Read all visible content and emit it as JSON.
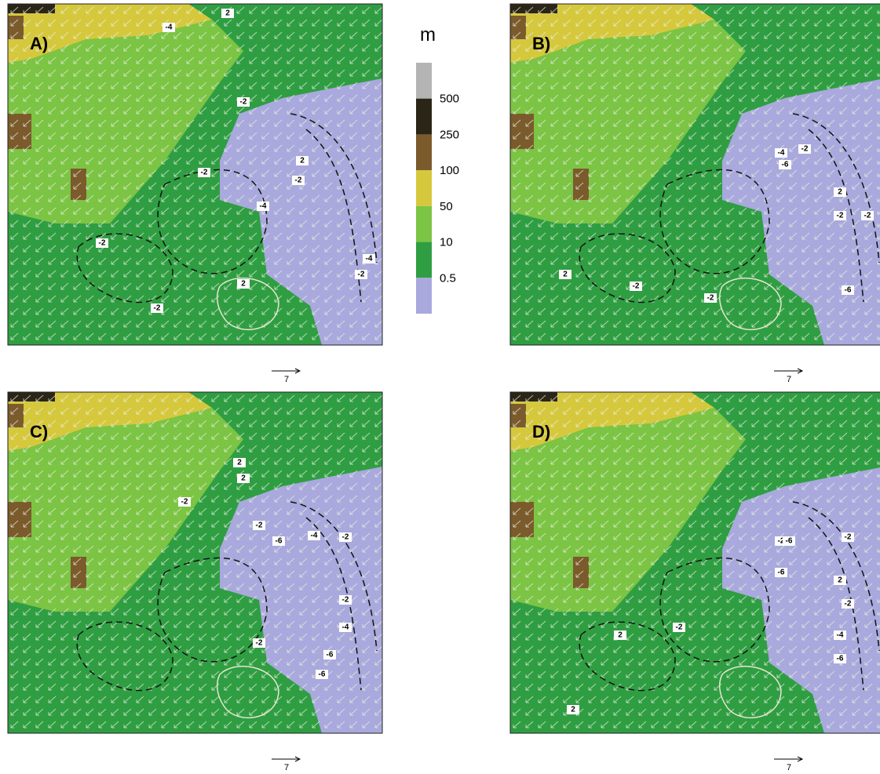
{
  "colorbar": {
    "unit": "m",
    "labels": [
      "500",
      "250",
      "100",
      "50",
      "10",
      "0.5"
    ],
    "colors": [
      "#b4b4b4",
      "#2b2518",
      "#7b5a2c",
      "#d6c83c",
      "#7cc444",
      "#2f9e42",
      "#a9a9dd"
    ]
  },
  "panels": [
    {
      "label": "A)",
      "reference_vector": "7",
      "contour_labels": [
        "-4",
        "2",
        "-2",
        "2",
        "-2",
        "-2",
        "-4",
        "-2",
        "-2",
        "2",
        "-4",
        "-2"
      ]
    },
    {
      "label": "B)",
      "reference_vector": "7",
      "contour_labels": [
        "-4",
        "-2",
        "-6",
        "2",
        "-2",
        "-2",
        "2",
        "-2",
        "-2",
        "-6"
      ]
    },
    {
      "label": "C)",
      "reference_vector": "7",
      "contour_labels": [
        "2",
        "2",
        "-2",
        "-2",
        "-6",
        "-4",
        "-2",
        "-2",
        "-4",
        "-6",
        "-2",
        "-6"
      ]
    },
    {
      "label": "D)",
      "reference_vector": "7",
      "contour_labels": [
        "-2",
        "-6",
        "-2",
        "-6",
        "2",
        "-2",
        "2",
        "2",
        "-2",
        "-4",
        "-6"
      ]
    }
  ]
}
